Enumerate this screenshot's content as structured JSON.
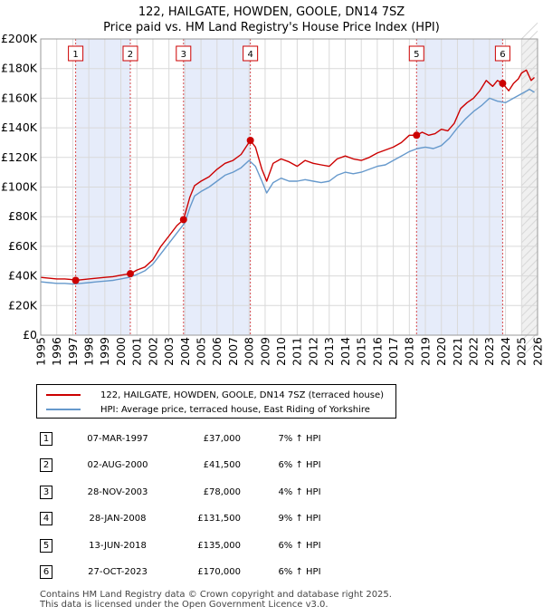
{
  "chart_data": {
    "type": "line",
    "title": "122, HAILGATE, HOWDEN, GOOLE, DN14 7SZ",
    "subtitle": "Price paid vs. HM Land Registry's House Price Index (HPI)",
    "xlim": [
      1995,
      2026
    ],
    "ylim": [
      0,
      200000
    ],
    "y_ticks": [
      {
        "value": 0,
        "label": "£0"
      },
      {
        "value": 20000,
        "label": "£20K"
      },
      {
        "value": 40000,
        "label": "£40K"
      },
      {
        "value": 60000,
        "label": "£60K"
      },
      {
        "value": 80000,
        "label": "£80K"
      },
      {
        "value": 100000,
        "label": "£100K"
      },
      {
        "value": 120000,
        "label": "£120K"
      },
      {
        "value": 140000,
        "label": "£140K"
      },
      {
        "value": 160000,
        "label": "£160K"
      },
      {
        "value": 180000,
        "label": "£180K"
      },
      {
        "value": 200000,
        "label": "£200K"
      }
    ],
    "x_ticks": [
      "1995",
      "1996",
      "1997",
      "1998",
      "1999",
      "2000",
      "2001",
      "2002",
      "2003",
      "2004",
      "2005",
      "2006",
      "2007",
      "2008",
      "2009",
      "2010",
      "2011",
      "2012",
      "2013",
      "2014",
      "2015",
      "2016",
      "2017",
      "2018",
      "2019",
      "2020",
      "2021",
      "2022",
      "2023",
      "2024",
      "2025",
      "2026"
    ],
    "grid": true,
    "forecast_from": 2025.0,
    "shaded_periods": [
      [
        1997.18,
        2000.59
      ],
      [
        2003.91,
        2008.08
      ],
      [
        2018.45,
        2023.82
      ]
    ],
    "series": [
      {
        "name": "122, HAILGATE, HOWDEN, GOOLE, DN14 7SZ (terraced house)",
        "color": "#cc0000",
        "x": [
          1995.0,
          1995.5,
          1996.0,
          1996.5,
          1997.0,
          1997.18,
          1997.6,
          1998.0,
          1998.5,
          1999.0,
          1999.5,
          2000.0,
          2000.59,
          2001.0,
          2001.5,
          2002.0,
          2002.5,
          2003.0,
          2003.5,
          2003.91,
          2004.3,
          2004.6,
          2005.0,
          2005.5,
          2006.0,
          2006.5,
          2007.0,
          2007.5,
          2008.08,
          2008.4,
          2008.8,
          2009.1,
          2009.5,
          2010.0,
          2010.5,
          2011.0,
          2011.5,
          2012.0,
          2012.5,
          2013.0,
          2013.5,
          2014.0,
          2014.5,
          2015.0,
          2015.5,
          2016.0,
          2016.5,
          2017.0,
          2017.5,
          2018.0,
          2018.45,
          2018.8,
          2019.2,
          2019.6,
          2020.0,
          2020.4,
          2020.8,
          2021.2,
          2021.6,
          2022.0,
          2022.4,
          2022.8,
          2023.2,
          2023.5,
          2023.82,
          2024.2,
          2024.5,
          2024.8,
          2025.0,
          2025.3,
          2025.6,
          2025.8
        ],
        "values": [
          39000,
          38500,
          38000,
          38000,
          37500,
          37000,
          37500,
          38000,
          38500,
          39000,
          39500,
          40500,
          41500,
          44000,
          46000,
          51000,
          60000,
          67000,
          74000,
          78000,
          93000,
          101000,
          104000,
          107000,
          112000,
          116000,
          118000,
          122000,
          131500,
          127000,
          112000,
          104000,
          116000,
          119000,
          117000,
          114000,
          118000,
          116000,
          115000,
          114000,
          119000,
          121000,
          119000,
          118000,
          120000,
          123000,
          125000,
          127000,
          130000,
          135000,
          135000,
          137000,
          135000,
          136000,
          139000,
          138000,
          143000,
          153000,
          157000,
          160000,
          165000,
          172000,
          168000,
          172000,
          170000,
          165000,
          170000,
          173000,
          177000,
          179000,
          172000,
          174000
        ]
      },
      {
        "name": "HPI: Average price, terraced house, East Riding of Yorkshire",
        "color": "#6699cc",
        "x": [
          1995.0,
          1995.5,
          1996.0,
          1996.5,
          1997.0,
          1997.5,
          1998.0,
          1998.5,
          1999.0,
          1999.5,
          2000.0,
          2000.5,
          2001.0,
          2001.5,
          2002.0,
          2002.5,
          2003.0,
          2003.5,
          2004.0,
          2004.3,
          2004.6,
          2005.0,
          2005.5,
          2006.0,
          2006.5,
          2007.0,
          2007.5,
          2008.0,
          2008.4,
          2008.8,
          2009.1,
          2009.5,
          2010.0,
          2010.5,
          2011.0,
          2011.5,
          2012.0,
          2012.5,
          2013.0,
          2013.5,
          2014.0,
          2014.5,
          2015.0,
          2015.5,
          2016.0,
          2016.5,
          2017.0,
          2017.5,
          2018.0,
          2018.5,
          2019.0,
          2019.5,
          2020.0,
          2020.5,
          2021.0,
          2021.5,
          2022.0,
          2022.5,
          2023.0,
          2023.5,
          2024.0,
          2024.5,
          2025.0,
          2025.5,
          2025.8
        ],
        "values": [
          36000,
          35500,
          35000,
          35000,
          34500,
          35000,
          35500,
          36000,
          36500,
          37000,
          38000,
          39000,
          41000,
          43500,
          48000,
          55000,
          62000,
          69000,
          76000,
          86000,
          94000,
          97000,
          100000,
          104000,
          108000,
          110000,
          113000,
          118000,
          114000,
          104000,
          96000,
          103000,
          106000,
          104000,
          104000,
          105000,
          104000,
          103000,
          104000,
          108000,
          110000,
          109000,
          110000,
          112000,
          114000,
          115000,
          118000,
          121000,
          124000,
          126000,
          127000,
          126000,
          128000,
          133000,
          140000,
          146000,
          151000,
          155000,
          160000,
          158000,
          157000,
          160000,
          163000,
          166000,
          164000
        ]
      }
    ],
    "sale_markers": [
      {
        "num": "1",
        "x": 1997.18,
        "y": 37000
      },
      {
        "num": "2",
        "x": 2000.59,
        "y": 41500
      },
      {
        "num": "3",
        "x": 2003.91,
        "y": 78000
      },
      {
        "num": "4",
        "x": 2008.08,
        "y": 131500
      },
      {
        "num": "5",
        "x": 2018.45,
        "y": 135000
      },
      {
        "num": "6",
        "x": 2023.82,
        "y": 170000
      }
    ]
  },
  "legend": {
    "property_label": "122, HAILGATE, HOWDEN, GOOLE, DN14 7SZ (terraced house)",
    "hpi_label": "HPI: Average price, terraced house, East Riding of Yorkshire",
    "property_color": "#cc0000",
    "hpi_color": "#6699cc"
  },
  "sales": [
    {
      "num": "1",
      "date": "07-MAR-1997",
      "price": "£37,000",
      "hpi": "7% ↑ HPI"
    },
    {
      "num": "2",
      "date": "02-AUG-2000",
      "price": "£41,500",
      "hpi": "6% ↑ HPI"
    },
    {
      "num": "3",
      "date": "28-NOV-2003",
      "price": "£78,000",
      "hpi": "4% ↑ HPI"
    },
    {
      "num": "4",
      "date": "28-JAN-2008",
      "price": "£131,500",
      "hpi": "9% ↑ HPI"
    },
    {
      "num": "5",
      "date": "13-JUN-2018",
      "price": "£135,000",
      "hpi": "6% ↑ HPI"
    },
    {
      "num": "6",
      "date": "27-OCT-2023",
      "price": "£170,000",
      "hpi": "6% ↑ HPI"
    }
  ],
  "footer": {
    "line1": "Contains HM Land Registry data © Crown copyright and database right 2025.",
    "line2": "This data is licensed under the Open Government Licence v3.0."
  }
}
